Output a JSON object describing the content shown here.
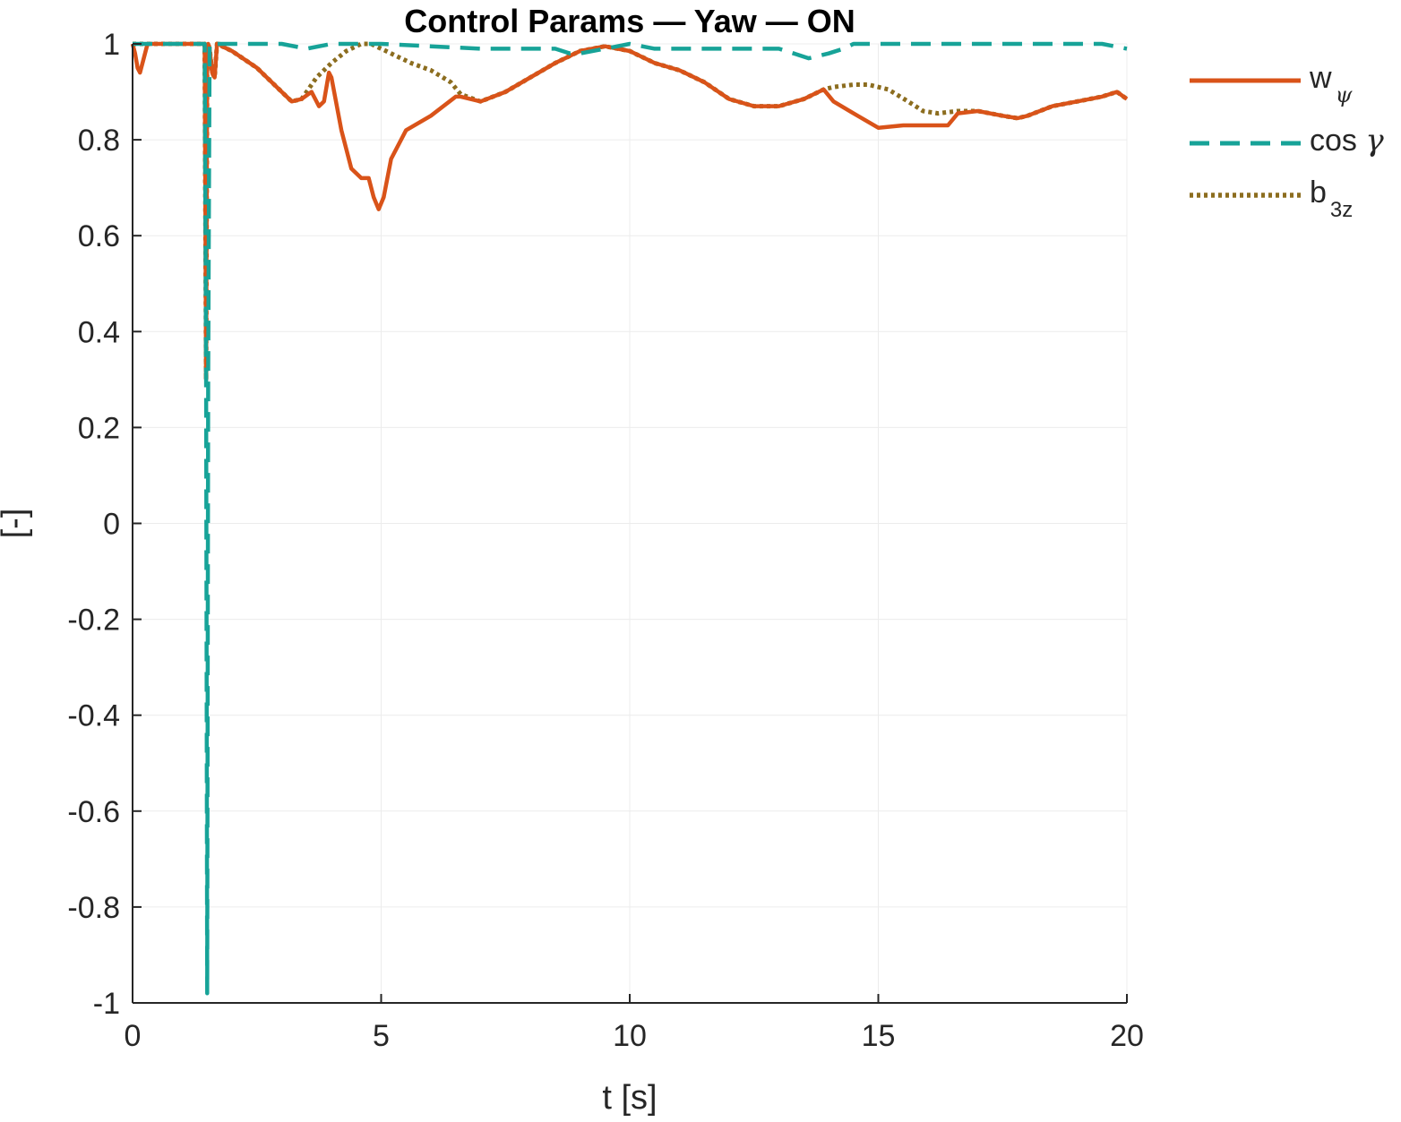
{
  "chart_data": {
    "type": "line",
    "title": "Control Params — Yaw — ON",
    "xlabel": "t [s]",
    "ylabel": "[-]",
    "xlim": [
      0,
      20
    ],
    "ylim": [
      -1,
      1
    ],
    "xticks": [
      0,
      5,
      10,
      15,
      20
    ],
    "xtick_labels": [
      "0",
      "5",
      "10",
      "15",
      "20"
    ],
    "yticks": [
      -1,
      -0.8,
      -0.6,
      -0.4,
      -0.2,
      0,
      0.2,
      0.4,
      0.6,
      0.8,
      1
    ],
    "ytick_labels": [
      "-1",
      "-0.8",
      "-0.6",
      "-0.4",
      "-0.2",
      "0",
      "0.2",
      "0.4",
      "0.6",
      "0.8",
      "1"
    ],
    "grid": true,
    "legend_position": "outside-right",
    "series": [
      {
        "name": "w_ψ",
        "legend": {
          "base": "w",
          "sub": "ψ"
        },
        "color": "#D95319",
        "style": "solid",
        "x": [
          0,
          0.05,
          0.1,
          0.15,
          0.2,
          0.3,
          0.5,
          1.0,
          1.45,
          1.48,
          1.5,
          1.52,
          1.55,
          1.6,
          1.65,
          1.7,
          1.75,
          1.8,
          2.0,
          2.5,
          3.0,
          3.2,
          3.4,
          3.6,
          3.75,
          3.85,
          3.95,
          4.0,
          4.2,
          4.4,
          4.6,
          4.75,
          4.85,
          4.95,
          5.05,
          5.2,
          5.5,
          6.0,
          6.5,
          6.6,
          7.0,
          7.5,
          8.0,
          8.5,
          9.0,
          9.5,
          10.0,
          10.5,
          11.0,
          11.5,
          12.0,
          12.5,
          13.0,
          13.5,
          13.9,
          14.1,
          14.5,
          15.0,
          15.5,
          16.0,
          16.4,
          16.6,
          17.0,
          17.5,
          17.8,
          18.0,
          18.5,
          19.0,
          19.5,
          19.8,
          20.0
        ],
        "y": [
          1.0,
          0.98,
          0.95,
          0.94,
          0.96,
          1.0,
          1.0,
          1.0,
          1.0,
          0.3,
          0.98,
          1.0,
          0.99,
          0.94,
          0.93,
          1.0,
          1.0,
          0.995,
          0.985,
          0.95,
          0.9,
          0.88,
          0.885,
          0.9,
          0.87,
          0.88,
          0.94,
          0.93,
          0.82,
          0.74,
          0.72,
          0.72,
          0.68,
          0.655,
          0.68,
          0.76,
          0.82,
          0.85,
          0.89,
          0.89,
          0.88,
          0.9,
          0.93,
          0.96,
          0.985,
          0.995,
          0.985,
          0.96,
          0.945,
          0.92,
          0.885,
          0.87,
          0.87,
          0.885,
          0.905,
          0.88,
          0.855,
          0.825,
          0.83,
          0.83,
          0.83,
          0.855,
          0.86,
          0.85,
          0.845,
          0.85,
          0.87,
          0.88,
          0.89,
          0.9,
          0.885
        ]
      },
      {
        "name": "cos γ",
        "legend": {
          "base": "cos ",
          "greek": "γ"
        },
        "color": "#17A398",
        "style": "dashed",
        "x": [
          0,
          1.0,
          1.45,
          1.48,
          1.5,
          1.52,
          1.55,
          1.6,
          2.0,
          2.5,
          3.0,
          3.5,
          4.0,
          4.5,
          5.0,
          6.0,
          7.0,
          8.0,
          8.5,
          8.8,
          9.0,
          9.5,
          10.0,
          10.5,
          11.0,
          11.5,
          12.0,
          12.5,
          13.0,
          13.3,
          13.6,
          14.0,
          14.3,
          14.5,
          15.0,
          16.0,
          17.0,
          18.0,
          19.0,
          19.5,
          20.0
        ],
        "y": [
          1.0,
          1.0,
          1.0,
          0.3,
          -0.98,
          0.3,
          1.0,
          1.0,
          1.0,
          1.0,
          1.0,
          0.99,
          1.0,
          1.0,
          1.0,
          0.995,
          0.99,
          0.99,
          0.99,
          0.98,
          0.98,
          0.99,
          1.0,
          0.99,
          0.99,
          0.99,
          0.99,
          0.99,
          0.99,
          0.98,
          0.97,
          0.98,
          0.99,
          1.0,
          1.0,
          1.0,
          1.0,
          1.0,
          1.0,
          1.0,
          0.99
        ]
      },
      {
        "name": "b_3z",
        "legend": {
          "base": "b",
          "sub": "3z"
        },
        "color": "#8C6D1F",
        "style": "dotted",
        "x": [
          0,
          1.0,
          1.45,
          1.48,
          1.5,
          1.52,
          1.55,
          1.6,
          1.65,
          1.7,
          1.75,
          1.8,
          2.0,
          2.5,
          3.0,
          3.2,
          3.4,
          3.5,
          3.7,
          4.0,
          4.3,
          4.6,
          4.8,
          5.0,
          5.3,
          5.6,
          6.0,
          6.4,
          6.6,
          7.0,
          7.5,
          8.0,
          8.5,
          9.0,
          9.5,
          10.0,
          10.5,
          11.0,
          11.5,
          12.0,
          12.5,
          13.0,
          13.5,
          13.9,
          14.1,
          14.5,
          14.8,
          15.2,
          15.6,
          15.9,
          16.2,
          16.6,
          17.0,
          17.5,
          17.8,
          18.0,
          18.5,
          19.0,
          19.5,
          19.8,
          20.0
        ],
        "y": [
          1.0,
          1.0,
          1.0,
          0.3,
          0.98,
          1.0,
          0.99,
          0.94,
          0.93,
          1.0,
          1.0,
          0.995,
          0.985,
          0.95,
          0.9,
          0.88,
          0.885,
          0.9,
          0.93,
          0.96,
          0.985,
          1.0,
          1.0,
          0.99,
          0.975,
          0.96,
          0.945,
          0.92,
          0.895,
          0.88,
          0.9,
          0.93,
          0.96,
          0.985,
          0.995,
          0.985,
          0.96,
          0.945,
          0.92,
          0.885,
          0.87,
          0.87,
          0.885,
          0.905,
          0.91,
          0.915,
          0.915,
          0.905,
          0.88,
          0.86,
          0.855,
          0.86,
          0.86,
          0.85,
          0.845,
          0.85,
          0.87,
          0.88,
          0.89,
          0.9,
          0.885
        ]
      }
    ]
  }
}
